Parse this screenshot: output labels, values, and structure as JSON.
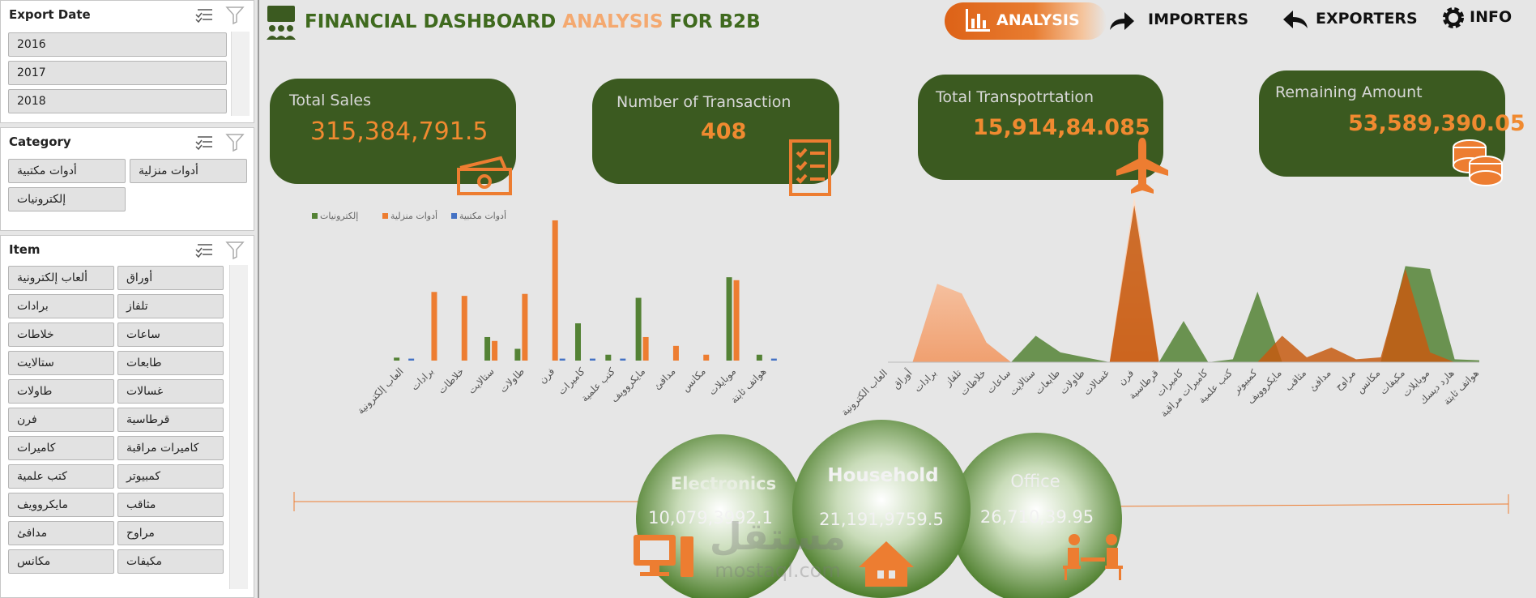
{
  "header": {
    "title_part1": "FINANCIAL DASHBOARD",
    "title_part2": "ANALYSIS",
    "title_part3": "FOR B2B"
  },
  "nav": [
    "ANALYSIS",
    "IMPORTERS",
    "EXPORTERS",
    "INFO"
  ],
  "slicers": [
    {
      "title": "Export Date",
      "items": [
        "2016",
        "2017",
        "2018"
      ]
    },
    {
      "title": "Category",
      "items": [
        "أدوات مكتبية",
        "أدوات منزلية",
        "إلكترونيات"
      ]
    },
    {
      "title": "Item",
      "items": [
        "ألعاب إلكترونية",
        "أوراق",
        "برادات",
        "تلفاز",
        "خلاطات",
        "ساعات",
        "ستالايت",
        "طابعات",
        "طاولات",
        "غسالات",
        "فرن",
        "قرطاسية",
        "كاميرات",
        "كاميرات مراقبة",
        "كتب علمية",
        "كمبيوتر",
        "مايكروويف",
        "مثاقب",
        "مدافئ",
        "مراوح",
        "مكانس",
        "مكيفات"
      ]
    }
  ],
  "kpis": [
    {
      "label": "Total Sales",
      "value": "315,384,791.5"
    },
    {
      "label": "Number of Transaction",
      "value": 408
    },
    {
      "label": "Total Transpotrtation",
      "value": "15,914,84.085"
    },
    {
      "label": "Remaining Amount",
      "value": "53,589,390.05"
    }
  ],
  "chart_data": [
    {
      "type": "bar",
      "categories": [
        "العاب إلكترونية",
        "برادات",
        "خلاطات",
        "ستالايت",
        "طاولات",
        "فرن",
        "كاميرات",
        "كتب علمية",
        "مايكروويف",
        "مدافئ",
        "مكانس",
        "موبايلات",
        "هواتف ثابتة"
      ],
      "series": [
        {
          "name": "إلكترونيات",
          "color": "#548235",
          "values": [
            3,
            0,
            0,
            24,
            12,
            0,
            38,
            6,
            64,
            0,
            0,
            85,
            6
          ]
        },
        {
          "name": "أدوات منزلية",
          "color": "#ed7d31",
          "values": [
            0,
            70,
            66,
            20,
            68,
            143,
            0,
            0,
            24,
            15,
            6,
            82,
            0
          ]
        },
        {
          "name": "أدوات مكتبية",
          "color": "#4472c4",
          "values": [
            2,
            0,
            0,
            0,
            0,
            2,
            2,
            2,
            0,
            0,
            0,
            0,
            2
          ]
        }
      ]
    },
    {
      "type": "area",
      "categories": [
        "العاب الكترونية",
        "أوراق",
        "برادات",
        "تلفاز",
        "خلاطات",
        "ساعات",
        "ستالايت",
        "طابعات",
        "طاولات",
        "غسالات",
        "فرن",
        "قرطاسية",
        "كاميرات",
        "كاميرات مراقبة",
        "كتب علمية",
        "كمبيوتر",
        "مايكروويف",
        "مثاقب",
        "مدافئ",
        "مراوح",
        "مكانس",
        "مكيفات",
        "موبايلات",
        "هارد ديسك",
        "هواتف ثابتة"
      ],
      "series": [
        {
          "color": "#f4b183",
          "values": [
            0,
            0,
            80,
            70,
            20,
            0,
            0,
            0,
            0,
            0,
            170,
            0,
            0,
            0,
            0,
            0,
            0,
            0,
            0,
            0,
            0,
            0,
            0,
            0,
            0
          ]
        },
        {
          "color": "#548235",
          "values": [
            0,
            0,
            0,
            0,
            0,
            0,
            27,
            10,
            5,
            0,
            0,
            0,
            42,
            0,
            3,
            72,
            0,
            0,
            0,
            0,
            0,
            98,
            95,
            3,
            2
          ]
        },
        {
          "color": "#c55a11",
          "values": [
            0,
            0,
            0,
            0,
            0,
            0,
            0,
            0,
            0,
            0,
            160,
            0,
            0,
            0,
            0,
            0,
            27,
            5,
            15,
            3,
            5,
            95,
            10,
            0,
            0
          ]
        }
      ]
    }
  ],
  "bubbles": [
    {
      "label": "Electronics",
      "value": "10,079,3992.1"
    },
    {
      "label": "Household",
      "value": "21,191,9759.5"
    },
    {
      "label": "Office",
      "value": "26,710,39.95"
    }
  ],
  "watermark": [
    "مستقل",
    "mostaql.com"
  ]
}
